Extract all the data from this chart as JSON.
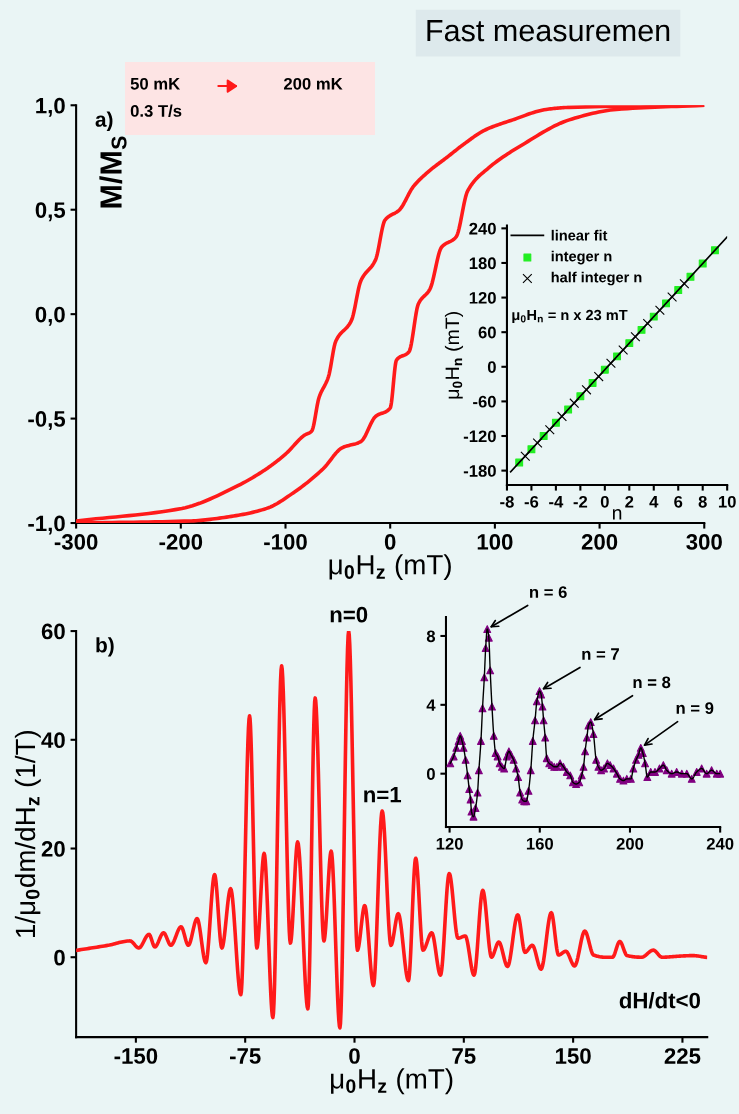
{
  "chart_data": [
    {
      "type": "line",
      "title": "Fast measuremen",
      "xlabel": "μ$_{0}$H$_{z}$ (mT)",
      "ylabel": "M/M$_{S}$",
      "xlim": [
        -300,
        300
      ],
      "xticks": [
        -300,
        -200,
        -100,
        0,
        100,
        200,
        300
      ],
      "ylim": [
        -1.0,
        1.0
      ],
      "yticks": [
        {
          "value": -1.0,
          "label": "-1,0"
        },
        {
          "value": -0.5,
          "label": "-0,5"
        },
        {
          "value": 0.0,
          "label": "0,0"
        },
        {
          "value": 0.5,
          "label": "0,5"
        },
        {
          "value": 1.0,
          "label": "1,0"
        }
      ],
      "grid": false,
      "legend": false,
      "annotations": [
        "a)",
        "50 mK",
        "200 mK",
        "0.3 T/s"
      ],
      "series": [
        {
          "color": "#ff1a1a",
          "x": [
            -300,
            -199,
            -145,
            -118,
            -100,
            -82,
            -75,
            -68,
            -59,
            -52,
            -37,
            -28,
            -14,
            -5,
            9,
            22,
            36,
            54,
            72,
            90,
            117,
            149,
            171,
            300
          ],
          "values": [
            -0.99,
            -0.93,
            -0.82,
            -0.74,
            -0.67,
            -0.58,
            -0.56,
            -0.4,
            -0.3,
            -0.13,
            -0.03,
            0.16,
            0.26,
            0.45,
            0.5,
            0.61,
            0.68,
            0.75,
            0.82,
            0.88,
            0.93,
            0.98,
            0.99,
            1.0
          ]
        },
        {
          "color": "#ff1a1a",
          "x": [
            -300,
            -190,
            -154,
            -118,
            -91,
            -64,
            -46,
            -28,
            -14,
            0,
            6,
            18,
            27,
            38,
            49,
            63,
            74,
            94,
            126,
            171,
            216,
            300
          ],
          "values": [
            -1.0,
            -0.99,
            -0.97,
            -0.93,
            -0.85,
            -0.74,
            -0.64,
            -0.61,
            -0.49,
            -0.45,
            -0.22,
            -0.18,
            0.05,
            0.12,
            0.32,
            0.37,
            0.59,
            0.7,
            0.81,
            0.93,
            0.98,
            1.0
          ]
        }
      ]
    },
    {
      "type": "scatter",
      "xlabel": "n",
      "ylabel": "μ$_{0}$H$_{n}$ (mT)",
      "xlim": [
        -8,
        10
      ],
      "xticks": [
        -8,
        -6,
        -4,
        -2,
        0,
        2,
        4,
        6,
        8,
        10
      ],
      "ylim": [
        -205,
        245
      ],
      "yticks": [
        -180,
        -120,
        -60,
        0,
        60,
        120,
        180,
        240
      ],
      "grid": false,
      "legend": "top left",
      "annotations": [
        "μ$_{0}$H$_{n}$ = n x 23 mT"
      ],
      "series": [
        {
          "name": "linear fit",
          "type": "line",
          "color": "#000000",
          "marker": "none",
          "x": [
            -7.7,
            10
          ],
          "values": [
            -182,
            225
          ]
        },
        {
          "name": "integer n",
          "color": "#22ee22",
          "marker": "square",
          "x": [
            -7,
            -6,
            -5,
            -4,
            -3,
            -2,
            -1,
            0,
            1,
            2,
            3,
            4,
            5,
            6,
            7,
            8,
            9
          ],
          "values": [
            -166,
            -143,
            -120,
            -97,
            -74,
            -51,
            -28,
            -5,
            18,
            41,
            64,
            87,
            110,
            133,
            156,
            179,
            202
          ]
        },
        {
          "name": "half integer n",
          "color": "#000000",
          "marker": "cross",
          "x": [
            -6.5,
            -5.5,
            -4.5,
            -3.5,
            -2.5,
            -1.5,
            -0.5,
            0.5,
            1.5,
            2.5,
            3.5,
            4.5,
            5.5,
            6.5
          ],
          "values": [
            -155,
            -132,
            -109,
            -86,
            -63,
            -40,
            -17,
            6,
            29,
            52,
            75,
            98,
            121,
            144
          ]
        }
      ]
    },
    {
      "type": "line",
      "xlabel": "μ$_{0}$H$_{z}$ (mT)",
      "ylabel": "1/μ$_{0}$dm/dH$_{z}$ (1/T)",
      "xlim": [
        -191,
        242
      ],
      "xticks": [
        -150,
        -75,
        0,
        75,
        150,
        225
      ],
      "ylim": [
        -14.7,
        60
      ],
      "yticks": [
        0,
        20,
        40,
        60
      ],
      "grid": false,
      "legend": false,
      "annotations": [
        "b)",
        "dH/dt<0",
        {
          "text": "n=0",
          "x": -4,
          "y": 60
        },
        {
          "text": "n=1",
          "x": 19,
          "y": 26.9
        }
      ],
      "x": [
        -190,
        -169,
        -154,
        -148,
        -141,
        -137,
        -131,
        -126,
        -119,
        -114,
        -108,
        -102,
        -96,
        -91,
        -85,
        -78,
        -72,
        -67,
        -62,
        -56,
        -50,
        -44,
        -39,
        -32,
        -27,
        -21,
        -16,
        -10,
        -4,
        2,
        7,
        13,
        19,
        25,
        30,
        37,
        42,
        47,
        53,
        59,
        65,
        71,
        76,
        82,
        88,
        94,
        99,
        105,
        112,
        117,
        122,
        128,
        135,
        140,
        145,
        151,
        158,
        164,
        172,
        177,
        182,
        187,
        197,
        205,
        211,
        223,
        232,
        241
      ],
      "series": [
        {
          "color": "#ff1a1a",
          "values": [
            1.3,
            2.2,
            3.0,
            1.7,
            4.2,
            1.9,
            4.5,
            2.2,
            5.6,
            2.2,
            7.1,
            -1.0,
            15.2,
            1.7,
            12.6,
            -6.9,
            44.4,
            1.7,
            19.1,
            -11.1,
            53.6,
            2.6,
            21.2,
            -9.5,
            47.7,
            3.0,
            19.5,
            -13.0,
            60,
            1.3,
            9.5,
            -5.2,
            26.9,
            2.2,
            8.0,
            -4.3,
            18.2,
            1.3,
            4.5,
            -3.3,
            15.4,
            3.5,
            3.9,
            -3.3,
            12.3,
            0.0,
            2.8,
            -1.7,
            7.8,
            0.9,
            2.2,
            -2.2,
            8.2,
            0.4,
            1.1,
            -1.6,
            4.8,
            0.4,
            0.0,
            0.0,
            2.9,
            0.3,
            0.0,
            1.3,
            0.0,
            0.2,
            0.3,
            0.0
          ]
        }
      ]
    },
    {
      "type": "scatter",
      "xlim": [
        118.4,
        240
      ],
      "xticks": [
        120,
        160,
        200,
        240
      ],
      "ylim": [
        -3.1,
        9.1
      ],
      "yticks": [
        0,
        4,
        8
      ],
      "grid": false,
      "legend": false,
      "annotations": [
        {
          "text": "n = 6",
          "x": 136.7,
          "y": 8.4
        },
        {
          "text": "n = 7",
          "x": 159.9,
          "y": 4.8
        },
        {
          "text": "n = 8",
          "x": 182.6,
          "y": 3.0
        },
        {
          "text": "n = 9",
          "x": 204.8,
          "y": 1.5
        }
      ],
      "x": [
        120.3,
        121.8,
        123.0,
        124.0,
        124.7,
        125.5,
        126.2,
        127.1,
        128.0,
        128.7,
        129.3,
        129.7,
        130.6,
        131.5,
        132.4,
        133.0,
        133.9,
        134.6,
        135.4,
        136.0,
        136.7,
        137.4,
        138.0,
        138.8,
        139.6,
        140.4,
        141.3,
        142.2,
        143.2,
        144.2,
        145.4,
        146.3,
        147.2,
        148.4,
        149.5,
        150.4,
        151.3,
        152.2,
        153.1,
        154.0,
        155.0,
        156.0,
        156.9,
        157.9,
        158.7,
        159.9,
        160.6,
        161.2,
        161.7,
        162.4,
        163.1,
        164.2,
        165.3,
        166.4,
        167.6,
        169.0,
        170.5,
        172.0,
        173.5,
        174.7,
        176.1,
        177.5,
        178.6,
        179.4,
        180.1,
        180.9,
        181.6,
        182.6,
        183.8,
        185.0,
        186.0,
        187.2,
        188.5,
        190.0,
        191.2,
        192.7,
        194.2,
        195.6,
        197.1,
        198.6,
        200.4,
        201.5,
        202.7,
        203.8,
        204.8,
        205.7,
        206.7,
        207.7,
        209.2,
        211.1,
        213.1,
        214.8,
        216.3,
        218.5,
        220.7,
        223.0,
        225.2,
        227.4,
        229.6,
        231.8,
        234.0,
        236.2,
        238.5,
        240.0
      ],
      "series": [
        {
          "type": "line",
          "color": "#000000",
          "marker": "none",
          "values": [
            0.6,
            1.0,
            1.5,
            1.9,
            2.2,
            1.9,
            1.5,
            0.8,
            -0.1,
            -0.9,
            -1.5,
            -2.2,
            -2.5,
            -2.0,
            -1.1,
            0.2,
            1.9,
            3.8,
            5.6,
            7.3,
            8.4,
            7.9,
            6.0,
            3.9,
            2.2,
            1.2,
            1.0,
            0.6,
            0.4,
            0.3,
            1.0,
            1.3,
            1.1,
            0.8,
            0.3,
            -0.2,
            -1.1,
            -1.5,
            -1.6,
            -1.6,
            -1.0,
            0.2,
            1.9,
            3.1,
            4.2,
            4.8,
            4.6,
            3.9,
            3.1,
            2.1,
            0.9,
            0.6,
            0.5,
            0.4,
            0.4,
            0.6,
            0.4,
            0.1,
            -0.1,
            -0.5,
            -0.6,
            -0.5,
            -0.1,
            0.4,
            1.3,
            2.1,
            2.8,
            3.0,
            2.3,
            0.8,
            0.4,
            0.2,
            0.3,
            0.6,
            0.5,
            0.3,
            0.0,
            -0.3,
            -0.4,
            -0.3,
            -0.3,
            0.3,
            0.8,
            1.1,
            1.5,
            1.2,
            0.6,
            -0.2,
            0.1,
            0.1,
            0.3,
            0.5,
            0.2,
            0.0,
            0.1,
            0.0,
            0.0,
            -0.3,
            0.1,
            0.3,
            0.0,
            0.2,
            0.0,
            0.0
          ]
        },
        {
          "type": "scatter",
          "color": "#800080",
          "marker": "triangle",
          "values": [
            0.6,
            1.0,
            1.5,
            1.9,
            2.2,
            1.9,
            1.5,
            0.8,
            -0.1,
            -0.9,
            -1.5,
            -2.2,
            -2.5,
            -2.0,
            -1.1,
            0.2,
            1.9,
            3.8,
            5.6,
            7.3,
            8.4,
            7.9,
            6.0,
            3.9,
            2.2,
            1.2,
            1.0,
            0.6,
            0.4,
            0.3,
            1.0,
            1.3,
            1.1,
            0.8,
            0.3,
            -0.2,
            -1.1,
            -1.5,
            -1.6,
            -1.6,
            -1.0,
            0.2,
            1.9,
            3.1,
            4.2,
            4.8,
            4.6,
            3.9,
            3.1,
            2.1,
            0.9,
            0.6,
            0.5,
            0.4,
            0.4,
            0.6,
            0.4,
            0.1,
            -0.1,
            -0.5,
            -0.6,
            -0.5,
            -0.1,
            0.4,
            1.3,
            2.1,
            2.8,
            3.0,
            2.3,
            0.8,
            0.4,
            0.2,
            0.3,
            0.6,
            0.5,
            0.3,
            0.0,
            -0.3,
            -0.4,
            -0.3,
            -0.3,
            0.3,
            0.8,
            1.1,
            1.5,
            1.2,
            0.6,
            -0.2,
            0.1,
            0.1,
            0.3,
            0.5,
            0.2,
            0.0,
            0.1,
            0.0,
            0.0,
            -0.3,
            0.1,
            0.3,
            0.0,
            0.2,
            0.0,
            0.0
          ]
        }
      ]
    }
  ]
}
